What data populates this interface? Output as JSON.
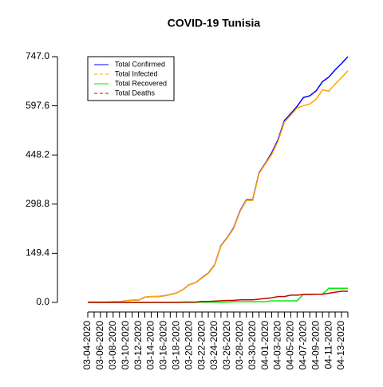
{
  "chart_data": {
    "type": "line",
    "title": "COVID-19 Tunisia",
    "categories": [
      "03-04-2020",
      null,
      "03-06-2020",
      null,
      "03-08-2020",
      null,
      "03-10-2020",
      null,
      "03-12-2020",
      null,
      "03-14-2020",
      null,
      "03-16-2020",
      null,
      "03-18-2020",
      null,
      "03-20-2020",
      null,
      "03-22-2020",
      null,
      "03-24-2020",
      null,
      "03-26-2020",
      null,
      "03-28-2020",
      null,
      "03-30-2020",
      null,
      "04-01-2020",
      null,
      "04-03-2020",
      null,
      "04-05-2020",
      null,
      "04-07-2020",
      null,
      "04-09-2020",
      null,
      "04-11-2020",
      null,
      "04-13-2020",
      null
    ],
    "series": [
      {
        "name": "Total Confirmed",
        "color": "#0000ff",
        "legend_dash": false,
        "values": [
          1,
          1,
          1,
          1,
          2,
          2,
          5,
          7,
          7,
          16,
          18,
          18,
          20,
          24,
          29,
          39,
          54,
          60,
          75,
          89,
          114,
          173,
          197,
          227,
          278,
          312,
          312,
          394,
          423,
          455,
          495,
          553,
          574,
          596,
          623,
          628,
          643,
          671,
          685,
          707,
          726,
          747
        ]
      },
      {
        "name": "Total Infected",
        "color": "#ffa500",
        "legend_dash": true,
        "values": [
          1,
          1,
          1,
          1,
          2,
          2,
          5,
          7,
          7,
          16,
          18,
          18,
          20,
          24,
          29,
          39,
          54,
          60,
          74,
          88,
          113,
          172,
          196,
          225,
          276,
          310,
          310,
          392,
          421,
          450,
          490,
          548,
          569,
          591,
          598,
          603,
          618,
          646,
          642,
          664,
          683,
          704
        ]
      },
      {
        "name": "Total Recovered",
        "color": "#00ee00",
        "legend_dash": false,
        "values": [
          0,
          0,
          0,
          0,
          0,
          0,
          0,
          0,
          0,
          0,
          0,
          0,
          0,
          0,
          0,
          0,
          0,
          0,
          1,
          1,
          1,
          1,
          1,
          2,
          2,
          2,
          2,
          2,
          2,
          5,
          5,
          5,
          5,
          5,
          25,
          25,
          25,
          25,
          43,
          43,
          43,
          43
        ]
      },
      {
        "name": "Total Deaths",
        "color": "#cc0000",
        "legend_dash": true,
        "values": [
          0,
          0,
          0,
          0,
          0,
          0,
          0,
          0,
          0,
          0,
          0,
          0,
          0,
          0,
          0,
          1,
          1,
          1,
          3,
          3,
          4,
          5,
          6,
          6,
          8,
          8,
          8,
          10,
          12,
          14,
          18,
          18,
          22,
          22,
          24,
          24,
          25,
          25,
          28,
          31,
          34,
          34
        ]
      }
    ],
    "ylim": [
      0,
      747
    ],
    "yticks": [
      {
        "value": 0,
        "label": "0.0"
      },
      149.4,
      298.8,
      448.2,
      597.6,
      {
        "value": 747,
        "label": "747.0"
      }
    ],
    "legend": "top-left"
  }
}
